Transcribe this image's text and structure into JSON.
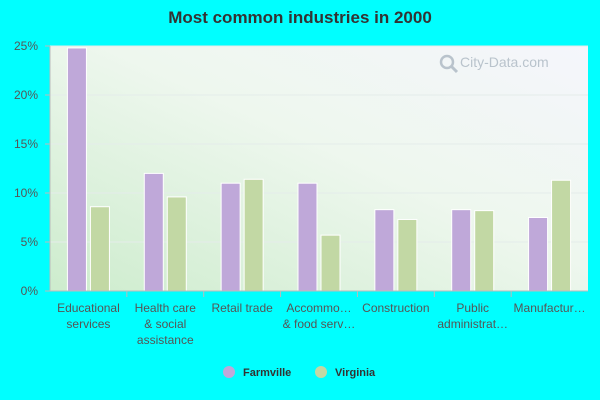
{
  "chart_data": {
    "type": "bar",
    "title": "Most common industries in 2000",
    "categories": [
      [
        "Educational",
        "services"
      ],
      [
        "Health care",
        "& social",
        "assistance"
      ],
      [
        "Retail trade"
      ],
      [
        "Accommo…",
        "& food serv…"
      ],
      [
        "Construction"
      ],
      [
        "Public",
        "administrat…"
      ],
      [
        "Manufactur…"
      ]
    ],
    "series": [
      {
        "name": "Farmville",
        "color": "#bfa8d9",
        "values": [
          24.8,
          12.0,
          11.0,
          11.0,
          8.3,
          8.3,
          7.5
        ]
      },
      {
        "name": "Virginia",
        "color": "#c2d8a4",
        "values": [
          8.6,
          9.6,
          11.4,
          5.7,
          7.3,
          8.2,
          11.3
        ]
      }
    ],
    "ylim": [
      0,
      25
    ],
    "yticks": [
      "0%",
      "5%",
      "10%",
      "15%",
      "20%",
      "25%"
    ],
    "ytick_values": [
      0,
      5,
      10,
      15,
      20,
      25
    ],
    "grid": true,
    "legend_position": "bottom"
  },
  "watermark": {
    "text": "City-Data.com",
    "icon": "magnifier-icon"
  },
  "colors": {
    "background": "#00FFFF"
  }
}
